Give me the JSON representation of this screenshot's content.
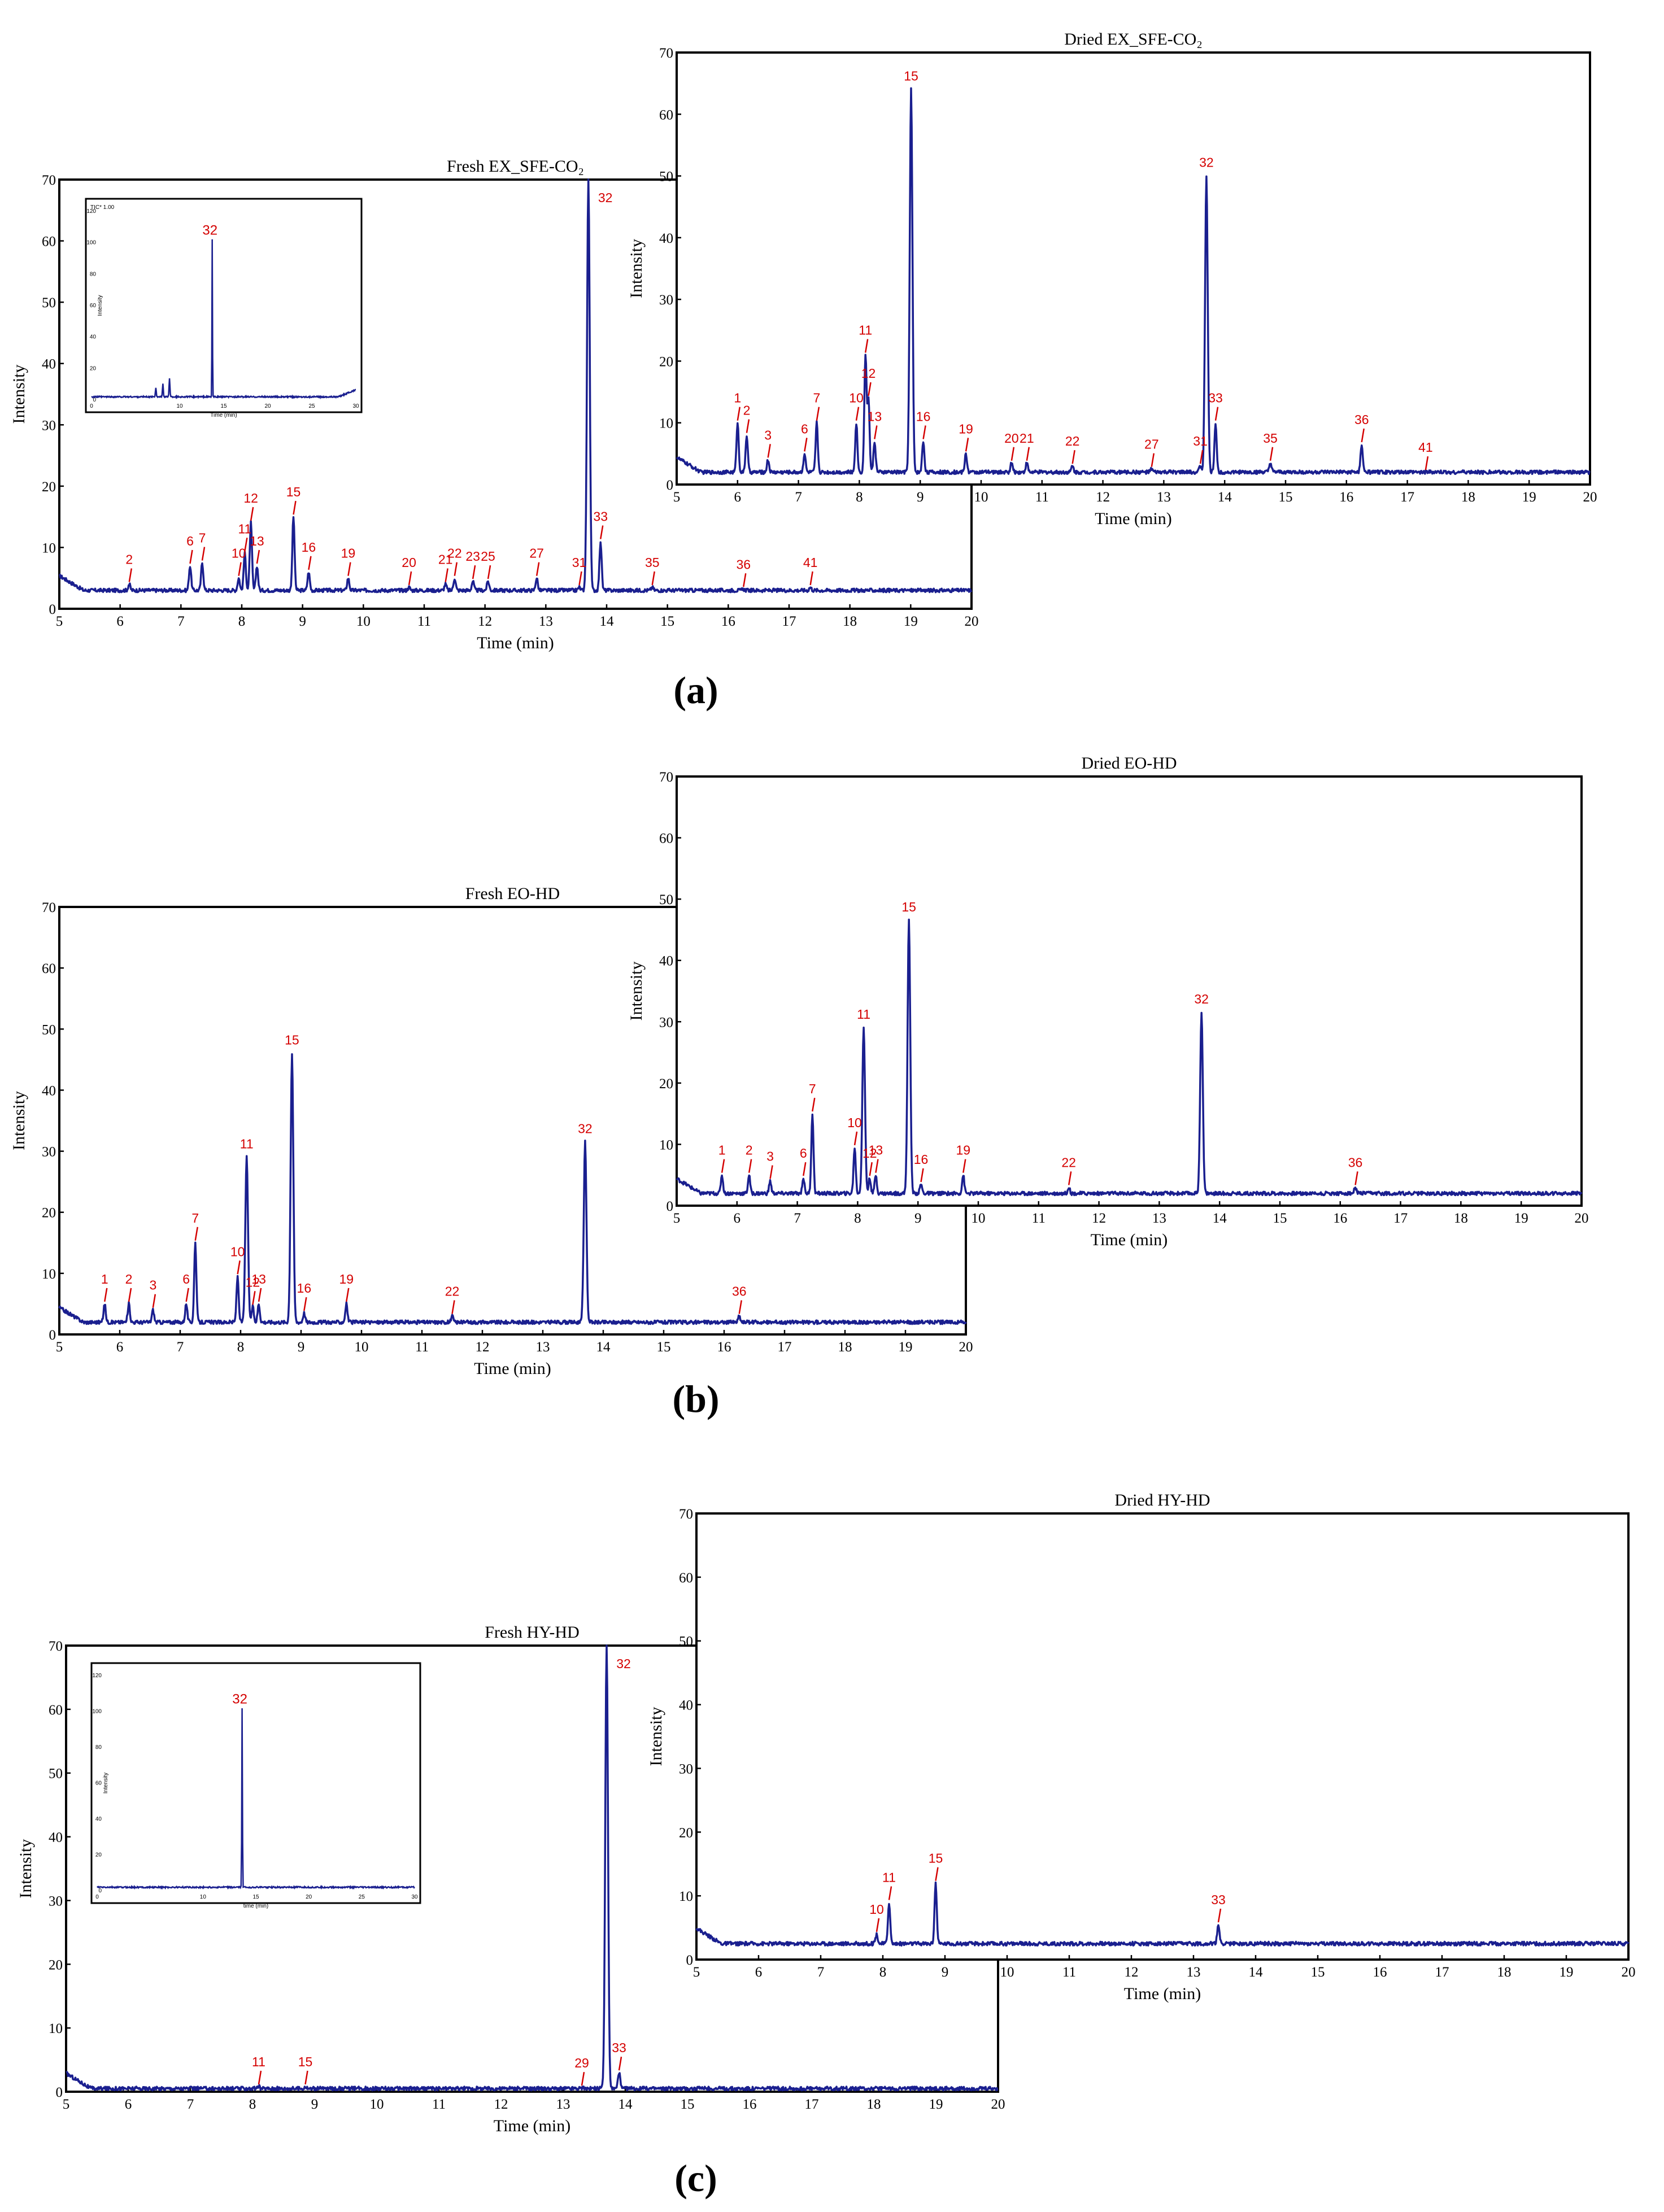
{
  "panel_labels": [
    "(a)",
    "(b)",
    "(c)"
  ],
  "chart_data": [
    {
      "id": "fresh-ex-sfe-co2",
      "type": "line",
      "title": "Fresh EX_SFE-CO₂",
      "xlabel": "Time (min)",
      "ylabel": "Intensity",
      "xlim": [
        5,
        20
      ],
      "ylim": [
        0,
        70
      ],
      "xticks": [
        5,
        6,
        7,
        8,
        9,
        10,
        11,
        12,
        13,
        14,
        15,
        16,
        17,
        18,
        19,
        20
      ],
      "yticks": [
        0,
        10,
        20,
        30,
        40,
        50,
        60,
        70
      ],
      "baseline": 3,
      "peaks": [
        {
          "label": "2",
          "x": 6.15,
          "y": 4.0
        },
        {
          "label": "6",
          "x": 7.15,
          "y": 7.0
        },
        {
          "label": "7",
          "x": 7.35,
          "y": 7.5
        },
        {
          "label": "10",
          "x": 7.95,
          "y": 5.0
        },
        {
          "label": "11",
          "x": 8.05,
          "y": 9.0
        },
        {
          "label": "12",
          "x": 8.15,
          "y": 14.0
        },
        {
          "label": "13",
          "x": 8.25,
          "y": 7.0
        },
        {
          "label": "15",
          "x": 8.85,
          "y": 15.0
        },
        {
          "label": "16",
          "x": 9.1,
          "y": 6.0
        },
        {
          "label": "19",
          "x": 9.75,
          "y": 5.0
        },
        {
          "label": "20",
          "x": 10.75,
          "y": 3.5
        },
        {
          "label": "21",
          "x": 11.35,
          "y": 4.0
        },
        {
          "label": "22",
          "x": 11.5,
          "y": 5.0
        },
        {
          "label": "23",
          "x": 11.8,
          "y": 4.5
        },
        {
          "label": "25",
          "x": 12.05,
          "y": 4.5
        },
        {
          "label": "27",
          "x": 12.85,
          "y": 5.0
        },
        {
          "label": "31",
          "x": 13.55,
          "y": 3.5
        },
        {
          "label": "32",
          "x": 13.7,
          "y": 70
        },
        {
          "label": "33",
          "x": 13.9,
          "y": 11.0
        },
        {
          "label": "35",
          "x": 14.75,
          "y": 3.5
        },
        {
          "label": "36",
          "x": 16.25,
          "y": 3.2
        },
        {
          "label": "41",
          "x": 17.35,
          "y": 3.5
        }
      ],
      "inset": {
        "header": "TIC* 1.00",
        "xlabel": "Time (min)",
        "ylabel": "Intensity",
        "xlim": [
          0,
          30
        ],
        "ylim": [
          0,
          120
        ],
        "xticks": [
          0,
          10,
          15,
          20,
          25,
          30
        ],
        "yticks": [
          0,
          20,
          40,
          60,
          80,
          100,
          120
        ],
        "peak_label": "32",
        "peak_x": 13.7,
        "peak_y": 100
      }
    },
    {
      "id": "dried-ex-sfe-co2",
      "type": "line",
      "title": "Dried EX_SFE-CO₂",
      "xlabel": "Time (min)",
      "ylabel": "Intensity",
      "xlim": [
        5,
        20
      ],
      "ylim": [
        0,
        70
      ],
      "xticks": [
        5,
        6,
        7,
        8,
        9,
        10,
        11,
        12,
        13,
        14,
        15,
        16,
        17,
        18,
        19,
        20
      ],
      "yticks": [
        0,
        10,
        20,
        30,
        40,
        50,
        60,
        70
      ],
      "baseline": 2,
      "peaks": [
        {
          "label": "1",
          "x": 6.0,
          "y": 10.0
        },
        {
          "label": "2",
          "x": 6.15,
          "y": 8.0
        },
        {
          "label": "3",
          "x": 6.5,
          "y": 4.0
        },
        {
          "label": "6",
          "x": 7.1,
          "y": 5.0
        },
        {
          "label": "7",
          "x": 7.3,
          "y": 10.0
        },
        {
          "label": "10",
          "x": 7.95,
          "y": 10.0
        },
        {
          "label": "11",
          "x": 8.1,
          "y": 21.0
        },
        {
          "label": "12",
          "x": 8.15,
          "y": 14.0
        },
        {
          "label": "13",
          "x": 8.25,
          "y": 7.0
        },
        {
          "label": "15",
          "x": 8.85,
          "y": 64.0
        },
        {
          "label": "16",
          "x": 9.05,
          "y": 7.0
        },
        {
          "label": "19",
          "x": 9.75,
          "y": 5.0
        },
        {
          "label": "20",
          "x": 10.5,
          "y": 3.5
        },
        {
          "label": "21",
          "x": 10.75,
          "y": 3.5
        },
        {
          "label": "22",
          "x": 11.5,
          "y": 3.0
        },
        {
          "label": "27",
          "x": 12.8,
          "y": 2.5
        },
        {
          "label": "31",
          "x": 13.6,
          "y": 3.0
        },
        {
          "label": "32",
          "x": 13.7,
          "y": 50.0
        },
        {
          "label": "33",
          "x": 13.85,
          "y": 10.0
        },
        {
          "label": "35",
          "x": 14.75,
          "y": 3.5
        },
        {
          "label": "36",
          "x": 16.25,
          "y": 6.5
        },
        {
          "label": "41",
          "x": 17.3,
          "y": 2.0
        }
      ]
    },
    {
      "id": "fresh-eo-hd",
      "type": "line",
      "title": "Fresh EO-HD",
      "xlabel": "Time (min)",
      "ylabel": "Intensity",
      "xlim": [
        5,
        20
      ],
      "ylim": [
        0,
        70
      ],
      "xticks": [
        5,
        6,
        7,
        8,
        9,
        10,
        11,
        12,
        13,
        14,
        15,
        16,
        17,
        18,
        19,
        20
      ],
      "yticks": [
        0,
        10,
        20,
        30,
        40,
        50,
        60,
        70
      ],
      "baseline": 2,
      "peaks": [
        {
          "label": "1",
          "x": 5.75,
          "y": 5.0
        },
        {
          "label": "2",
          "x": 6.15,
          "y": 5.0
        },
        {
          "label": "3",
          "x": 6.55,
          "y": 4.0
        },
        {
          "label": "6",
          "x": 7.1,
          "y": 5.0
        },
        {
          "label": "7",
          "x": 7.25,
          "y": 15.0
        },
        {
          "label": "10",
          "x": 7.95,
          "y": 9.5
        },
        {
          "label": "11",
          "x": 8.1,
          "y": 29.0
        },
        {
          "label": "12",
          "x": 8.2,
          "y": 4.5
        },
        {
          "label": "13",
          "x": 8.3,
          "y": 5.0
        },
        {
          "label": "15",
          "x": 8.85,
          "y": 46.0
        },
        {
          "label": "16",
          "x": 9.05,
          "y": 3.5
        },
        {
          "label": "19",
          "x": 9.75,
          "y": 5.0
        },
        {
          "label": "22",
          "x": 11.5,
          "y": 3.0
        },
        {
          "label": "32",
          "x": 13.7,
          "y": 31.5
        },
        {
          "label": "36",
          "x": 16.25,
          "y": 3.0
        }
      ]
    },
    {
      "id": "dried-eo-hd",
      "type": "line",
      "title": "Dried EO-HD",
      "xlabel": "Time (min)",
      "ylabel": "Intensity",
      "xlim": [
        5,
        20
      ],
      "ylim": [
        0,
        70
      ],
      "xticks": [
        5,
        6,
        7,
        8,
        9,
        10,
        11,
        12,
        13,
        14,
        15,
        16,
        17,
        18,
        19,
        20
      ],
      "yticks": [
        0,
        10,
        20,
        30,
        40,
        50,
        60,
        70
      ],
      "baseline": 2,
      "peaks": [
        {
          "label": "1",
          "x": 5.75,
          "y": 5.0
        },
        {
          "label": "2",
          "x": 6.2,
          "y": 5.0
        },
        {
          "label": "3",
          "x": 6.55,
          "y": 4.0
        },
        {
          "label": "6",
          "x": 7.1,
          "y": 4.5
        },
        {
          "label": "7",
          "x": 7.25,
          "y": 15.0
        },
        {
          "label": "10",
          "x": 7.95,
          "y": 9.5
        },
        {
          "label": "11",
          "x": 8.1,
          "y": 29.0
        },
        {
          "label": "12",
          "x": 8.2,
          "y": 4.5
        },
        {
          "label": "13",
          "x": 8.3,
          "y": 5.0
        },
        {
          "label": "15",
          "x": 8.85,
          "y": 46.5
        },
        {
          "label": "16",
          "x": 9.05,
          "y": 3.5
        },
        {
          "label": "19",
          "x": 9.75,
          "y": 5.0
        },
        {
          "label": "22",
          "x": 11.5,
          "y": 3.0
        },
        {
          "label": "32",
          "x": 13.7,
          "y": 31.5
        },
        {
          "label": "36",
          "x": 16.25,
          "y": 3.0
        }
      ]
    },
    {
      "id": "fresh-hy-hd",
      "type": "line",
      "title": "Fresh HY-HD",
      "xlabel": "Time (min)",
      "ylabel": "Intensity",
      "xlim": [
        5,
        20
      ],
      "ylim": [
        0,
        70
      ],
      "xticks": [
        5,
        6,
        7,
        8,
        9,
        10,
        11,
        12,
        13,
        14,
        15,
        16,
        17,
        18,
        19,
        20
      ],
      "yticks": [
        0,
        10,
        20,
        30,
        40,
        50,
        60,
        70
      ],
      "baseline": 0.5,
      "peaks": [
        {
          "label": "11",
          "x": 8.1,
          "y": 0.8
        },
        {
          "label": "15",
          "x": 8.85,
          "y": 0.8
        },
        {
          "label": "29",
          "x": 13.3,
          "y": 0.6
        },
        {
          "label": "32",
          "x": 13.7,
          "y": 70
        },
        {
          "label": "33",
          "x": 13.9,
          "y": 3.0
        }
      ],
      "inset": {
        "header": "",
        "xlabel": "time (min)",
        "ylabel": "Intensity",
        "xlim": [
          0,
          30
        ],
        "ylim": [
          0,
          120
        ],
        "xticks": [
          0,
          10,
          15,
          20,
          25,
          30
        ],
        "yticks": [
          0,
          20,
          40,
          60,
          80,
          100,
          120
        ],
        "peak_label": "32",
        "peak_x": 13.7,
        "peak_y": 100
      }
    },
    {
      "id": "dried-hy-hd",
      "type": "line",
      "title": "Dried HY-HD",
      "xlabel": "Time (min)",
      "ylabel": "Intensity",
      "xlim": [
        5,
        20
      ],
      "ylim": [
        0,
        70
      ],
      "xticks": [
        5,
        6,
        7,
        8,
        9,
        10,
        11,
        12,
        13,
        14,
        15,
        16,
        17,
        18,
        19,
        20
      ],
      "yticks": [
        0,
        10,
        20,
        30,
        40,
        50,
        60,
        70
      ],
      "baseline": 2.5,
      "peaks": [
        {
          "label": "10",
          "x": 7.9,
          "y": 4.0
        },
        {
          "label": "11",
          "x": 8.1,
          "y": 9.0
        },
        {
          "label": "15",
          "x": 8.85,
          "y": 12.0
        },
        {
          "label": "33",
          "x": 13.4,
          "y": 5.5
        }
      ]
    }
  ]
}
